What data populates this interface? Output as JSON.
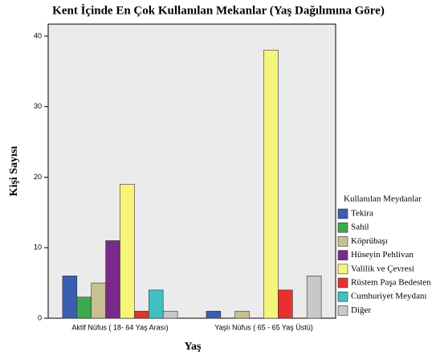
{
  "chart_data": {
    "type": "bar",
    "title": "Kent İçinde En Çok Kullanılan Mekanlar (Yaş Dağılımına Göre)",
    "x_label": "Yaş",
    "y_label": "Kişi Sayısı",
    "legend_title": "Kullanılan Meydanlar",
    "categories": [
      "Aktif Nüfus ( 18- 64 Yaş Arası)",
      "Yaşlı Nüfus ( 65 - 65 Yaş Üstü)"
    ],
    "series": [
      {
        "name": "Tekira",
        "color": "#3a5fb0",
        "values": [
          6,
          1
        ]
      },
      {
        "name": "Sahil",
        "color": "#3aab4a",
        "values": [
          3,
          0
        ]
      },
      {
        "name": "Köprübaşı",
        "color": "#c8c090",
        "values": [
          5,
          1
        ]
      },
      {
        "name": "Hüseyin Pehlivan",
        "color": "#7a2a8a",
        "values": [
          11,
          0
        ]
      },
      {
        "name": "Valilik ve Çevresi",
        "color": "#f5f57a",
        "values": [
          19,
          38
        ]
      },
      {
        "name": "Rüstem Paşa Bedesten",
        "color": "#e83030",
        "values": [
          1,
          4
        ]
      },
      {
        "name": "Cumhuriyet Meydanı",
        "color": "#40c0c0",
        "values": [
          4,
          0
        ]
      },
      {
        "name": "Diğer",
        "color": "#c8c8c8",
        "values": [
          1,
          6
        ]
      }
    ],
    "ylim": [
      0,
      41.7
    ],
    "yticks": [
      0,
      10,
      20,
      30,
      40
    ],
    "legend": "right"
  }
}
